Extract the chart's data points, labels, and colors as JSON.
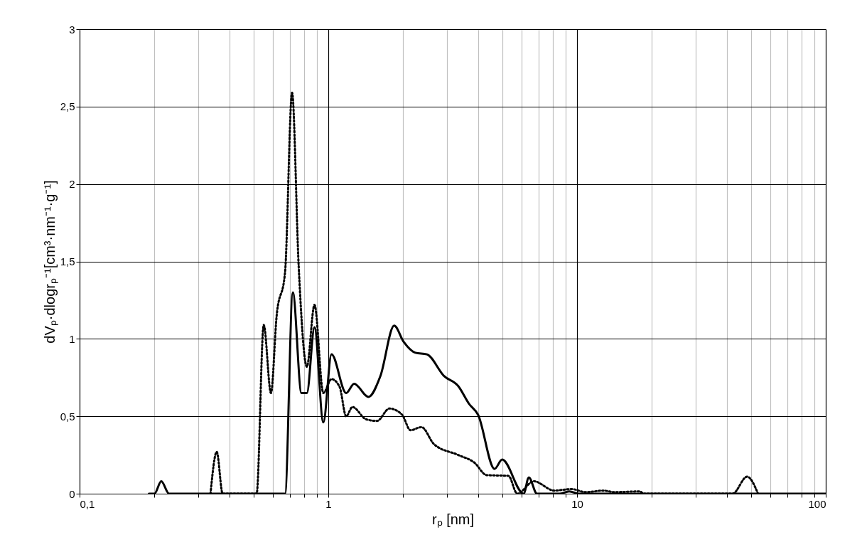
{
  "chart_data": {
    "type": "line",
    "xlabel": "rₚ [nm]",
    "ylabel": "dVₚ·dlogrₚ⁻¹[cm³·nm⁻¹·g⁻¹]",
    "log": "x",
    "grid": true,
    "xlim": [
      0.1,
      100
    ],
    "xticks": [
      {
        "value": 0.1,
        "label": "0,1"
      },
      {
        "value": 0.2,
        "label": null
      },
      {
        "value": 0.3,
        "label": null
      },
      {
        "value": 0.4,
        "label": null
      },
      {
        "value": 0.5,
        "label": null
      },
      {
        "value": 0.6,
        "label": null
      },
      {
        "value": 0.7,
        "label": null
      },
      {
        "value": 0.8,
        "label": null
      },
      {
        "value": 0.9,
        "label": null
      },
      1,
      {
        "value": 2,
        "label": null
      },
      {
        "value": 3,
        "label": null
      },
      {
        "value": 4,
        "label": null
      },
      {
        "value": 5,
        "label": null
      },
      {
        "value": 6,
        "label": null
      },
      {
        "value": 7,
        "label": null
      },
      {
        "value": 8,
        "label": null
      },
      {
        "value": 9,
        "label": null
      },
      10,
      {
        "value": 20,
        "label": null
      },
      {
        "value": 30,
        "label": null
      },
      {
        "value": 40,
        "label": null
      },
      {
        "value": 50,
        "label": null
      },
      {
        "value": 60,
        "label": null
      },
      {
        "value": 70,
        "label": null
      },
      {
        "value": 80,
        "label": null
      },
      {
        "value": 90,
        "label": null
      },
      100
    ],
    "ylim": [
      0,
      3
    ],
    "yticks": [
      0,
      {
        "value": 0.5,
        "label": "0,5"
      },
      1,
      {
        "value": 1.5,
        "label": "1,5"
      },
      2,
      {
        "value": 2.5,
        "label": "2,5"
      },
      3
    ],
    "series": [
      {
        "color": "#000000",
        "line_style": "solid",
        "x": [
          0.19,
          0.2,
          0.213,
          0.229,
          0.4,
          0.6,
          0.67,
          0.72,
          0.78,
          0.82,
          0.88,
          0.955,
          1.03,
          1.18,
          1.27,
          1.45,
          1.62,
          1.84,
          2.01,
          2.24,
          2.49,
          2.92,
          3.33,
          3.68,
          4.0,
          4.66,
          5.0,
          6.1,
          6.4,
          6.9,
          8.5,
          9.3,
          10.2,
          20,
          50,
          100
        ],
        "values": [
          0,
          0,
          0.08,
          0,
          0,
          0,
          0,
          1.3,
          0.65,
          0.65,
          1.075,
          0.46,
          0.9,
          0.65,
          0.71,
          0.625,
          0.76,
          1.085,
          0.98,
          0.91,
          0.9,
          0.76,
          0.695,
          0.58,
          0.51,
          0.16,
          0.22,
          0,
          0.105,
          0,
          0,
          0.015,
          0,
          0,
          0,
          0
        ]
      },
      {
        "color": "#000000",
        "line_style": "dotted",
        "x": [
          0.336,
          0.356,
          0.376,
          0.45,
          0.515,
          0.55,
          0.588,
          0.62,
          0.67,
          0.715,
          0.76,
          0.82,
          0.88,
          0.955,
          1.03,
          1.11,
          1.18,
          1.25,
          1.42,
          1.57,
          1.76,
          1.98,
          2.14,
          2.37,
          2.66,
          3.33,
          3.87,
          4.33,
          5.3,
          5.75,
          6.7,
          8.1,
          9.5,
          10.8,
          12.8,
          14.1,
          17.9,
          18.5,
          30,
          42.2,
          48.3,
          53.4
        ],
        "values": [
          0,
          0.27,
          0,
          0,
          0,
          1.09,
          0.65,
          1.15,
          1.43,
          2.59,
          1.47,
          0.82,
          1.22,
          0.65,
          0.74,
          0.69,
          0.5,
          0.56,
          0.48,
          0.47,
          0.55,
          0.51,
          0.41,
          0.43,
          0.32,
          0.25,
          0.2,
          0.12,
          0.115,
          0,
          0.08,
          0.02,
          0.03,
          0.01,
          0.02,
          0.01,
          0.015,
          0,
          0,
          0,
          0.11,
          0
        ]
      }
    ]
  }
}
